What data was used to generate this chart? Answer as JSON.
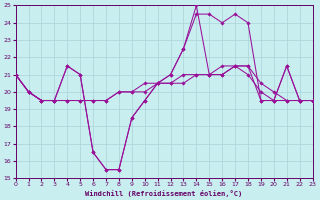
{
  "xlabel": "Windchill (Refroidissement éolien,°C)",
  "bg_color": "#c8eef0",
  "grid_color": "#aad4d8",
  "line_color": "#991199",
  "xlim": [
    0,
    23
  ],
  "ylim": [
    15,
    25
  ],
  "yticks": [
    15,
    16,
    17,
    18,
    19,
    20,
    21,
    22,
    23,
    24,
    25
  ],
  "xticks": [
    0,
    1,
    2,
    3,
    4,
    5,
    6,
    7,
    8,
    9,
    10,
    11,
    12,
    13,
    14,
    15,
    16,
    17,
    18,
    19,
    20,
    21,
    22,
    23
  ],
  "series": [
    {
      "x": [
        0,
        1,
        2,
        3,
        4,
        5,
        6,
        7,
        8,
        9,
        10,
        11,
        12,
        13,
        14,
        15,
        16,
        17,
        18,
        19,
        20,
        21,
        22,
        23
      ],
      "y": [
        21.0,
        20.0,
        19.5,
        19.5,
        21.5,
        21.0,
        16.5,
        15.5,
        15.5,
        18.5,
        19.5,
        20.5,
        21.0,
        22.5,
        25.0,
        21.0,
        21.5,
        21.5,
        21.5,
        19.5,
        19.5,
        21.5,
        19.5,
        19.5
      ]
    },
    {
      "x": [
        0,
        1,
        2,
        3,
        4,
        5,
        6,
        7,
        8,
        9,
        10,
        11,
        12,
        13,
        14,
        15,
        16,
        17,
        18,
        19,
        20,
        21,
        22,
        23
      ],
      "y": [
        21.0,
        20.0,
        19.5,
        19.5,
        19.5,
        19.5,
        19.5,
        19.5,
        20.0,
        20.0,
        20.5,
        20.5,
        20.5,
        21.0,
        21.0,
        21.0,
        21.0,
        21.5,
        21.5,
        20.5,
        20.0,
        19.5,
        19.5,
        19.5
      ]
    },
    {
      "x": [
        0,
        1,
        2,
        3,
        4,
        5,
        6,
        7,
        8,
        9,
        10,
        11,
        12,
        13,
        14,
        15,
        16,
        17,
        18,
        19,
        20,
        21,
        22,
        23
      ],
      "y": [
        21.0,
        20.0,
        19.5,
        19.5,
        21.5,
        21.0,
        16.5,
        15.5,
        15.5,
        18.5,
        19.5,
        20.5,
        21.0,
        22.5,
        24.5,
        24.5,
        24.0,
        24.5,
        24.0,
        19.5,
        19.5,
        21.5,
        19.5,
        19.5
      ]
    },
    {
      "x": [
        0,
        1,
        2,
        3,
        4,
        5,
        6,
        7,
        8,
        9,
        10,
        11,
        12,
        13,
        14,
        15,
        16,
        17,
        18,
        19,
        20,
        21,
        22,
        23
      ],
      "y": [
        21.0,
        20.0,
        19.5,
        19.5,
        19.5,
        19.5,
        19.5,
        19.5,
        20.0,
        20.0,
        20.0,
        20.5,
        20.5,
        20.5,
        21.0,
        21.0,
        21.0,
        21.5,
        21.0,
        20.0,
        19.5,
        19.5,
        19.5,
        19.5
      ]
    }
  ]
}
